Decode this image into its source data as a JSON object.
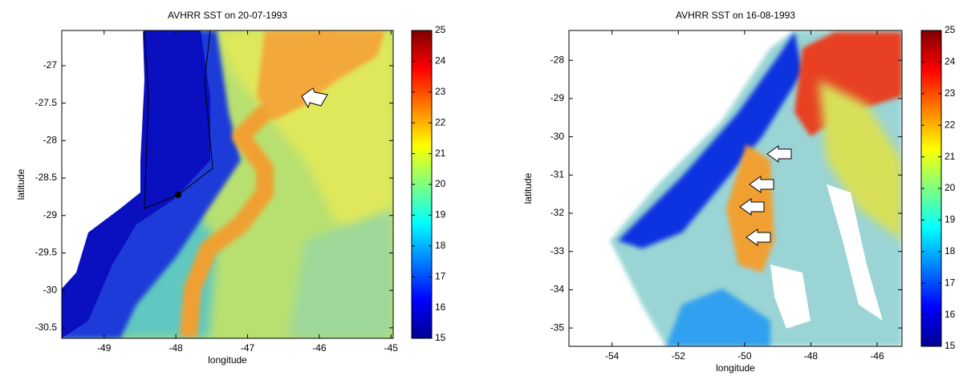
{
  "panels": [
    {
      "title": "AVHRR SST on 20-07-1993",
      "xlabel": "longitude",
      "ylabel": "latitude",
      "xlim": [
        -49.59,
        -44.97
      ],
      "ylim": [
        -30.64,
        -26.53
      ],
      "xticks": [
        -49,
        -48,
        -47,
        -46,
        -45
      ],
      "yticks": [
        -30.5,
        -30,
        -29.5,
        -29,
        -28.5,
        -28,
        -27.5,
        -27
      ],
      "colorbar": {
        "lim": [
          15,
          25
        ],
        "ticks": [
          15,
          16,
          17,
          18,
          19,
          20,
          21,
          22,
          23,
          24,
          25
        ]
      }
    },
    {
      "title": "AVHRR SST on 16-08-1993",
      "xlabel": "longitude",
      "ylabel": "latitude",
      "xlim": [
        -55.3,
        -45.25
      ],
      "ylim": [
        -35.48,
        -27.22
      ],
      "xticks": [
        -54,
        -52,
        -50,
        -48,
        -46
      ],
      "yticks": [
        -35,
        -34,
        -33,
        -32,
        -31,
        -30,
        -29,
        -28
      ],
      "colorbar": {
        "lim": [
          15,
          25
        ],
        "ticks": [
          15,
          16,
          17,
          18,
          19,
          20,
          21,
          22,
          23,
          24,
          25
        ]
      }
    }
  ]
}
